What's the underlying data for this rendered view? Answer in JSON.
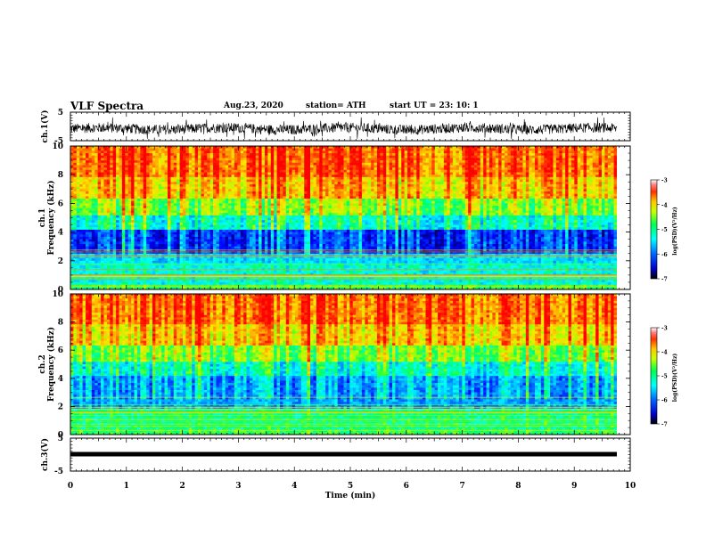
{
  "header": {
    "title": "VLF Spectra",
    "date": "Aug.23, 2020",
    "station": "station= ATH",
    "start_ut": "start  UT =  23: 10: 1"
  },
  "chart_data": [
    {
      "type": "line",
      "name": "ch1-waveform",
      "ylabel": "ch.1(V)",
      "ylim": [
        -5,
        5
      ],
      "yticks": [
        "5",
        "-5"
      ],
      "xlim": [
        0,
        10
      ]
    },
    {
      "type": "heatmap",
      "name": "ch1-spectrogram",
      "ylabel_top": "ch.1",
      "ylabel": "Frequency  (kHz)",
      "ylim": [
        0,
        10
      ],
      "yticks": [
        "0",
        "2",
        "4",
        "6",
        "8",
        "10"
      ],
      "xlim": [
        0,
        9.8
      ],
      "colorbar": {
        "label": "log(PSD)(V²/Hz)",
        "range": [
          -7,
          -3
        ],
        "ticks": [
          "-3",
          "-4",
          "-5",
          "-6",
          "-7"
        ]
      }
    },
    {
      "type": "heatmap",
      "name": "ch2-spectrogram",
      "ylabel_top": "ch.2",
      "ylabel": "Frequency  (kHz)",
      "ylim": [
        0,
        10
      ],
      "yticks": [
        "0",
        "2",
        "4",
        "6",
        "8",
        "10"
      ],
      "xlim": [
        0,
        9.8
      ],
      "colorbar": {
        "label": "log(PSD)(V²/Hz)",
        "range": [
          -7,
          -3
        ],
        "ticks": [
          "-3",
          "-4",
          "-5",
          "-6",
          "-7"
        ]
      }
    },
    {
      "type": "line",
      "name": "ch3-waveform",
      "ylabel": "ch.3(V)",
      "ylim": [
        -5,
        5
      ],
      "yticks": [
        "5",
        "-5"
      ],
      "xlim": [
        0,
        10
      ]
    }
  ],
  "xaxis": {
    "label": "Time  (min)",
    "ticks": [
      "0",
      "1",
      "2",
      "3",
      "4",
      "5",
      "6",
      "7",
      "8",
      "9",
      "10"
    ]
  },
  "colors": {
    "colormap": [
      "#000080",
      "#0000ff",
      "#00b4ff",
      "#00ffff",
      "#00ff80",
      "#80ff00",
      "#ffff00",
      "#ffa500",
      "#ff2800",
      "#ff0000",
      "#ffffff"
    ]
  }
}
